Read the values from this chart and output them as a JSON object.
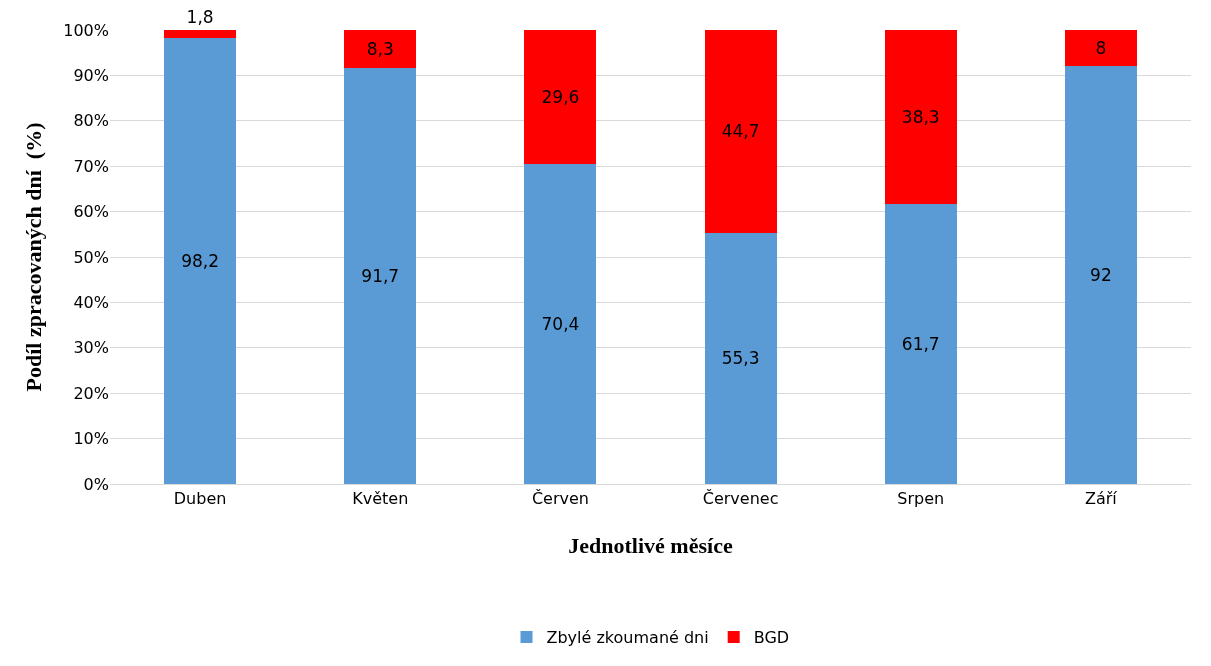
{
  "chart_data": {
    "type": "bar",
    "stacked": true,
    "xlabel": "Jednotlivé měsíce",
    "ylabel": "Podíl zpracovaných dní  (%)",
    "categories": [
      "Duben",
      "Květen",
      "Červen",
      "Červenec",
      "Srpen",
      "Září"
    ],
    "series": [
      {
        "name": "Zbylé zkoumané dni",
        "color": "#5b9bd5",
        "values": [
          98.2,
          91.7,
          70.4,
          55.3,
          61.7,
          92
        ],
        "value_labels": [
          "98,2",
          "91,7",
          "70,4",
          "55,3",
          "61,7",
          "92"
        ]
      },
      {
        "name": "BGD",
        "color": "#ff0000",
        "values": [
          1.8,
          8.3,
          29.6,
          44.7,
          38.3,
          8
        ],
        "value_labels": [
          "1,8",
          "8,3",
          "29,6",
          "44,7",
          "38,3",
          "8"
        ]
      }
    ],
    "ylim": [
      0,
      100
    ],
    "yticks": [
      {
        "value": 0,
        "label": "0%"
      },
      {
        "value": 10,
        "label": "10%"
      },
      {
        "value": 20,
        "label": "20%"
      },
      {
        "value": 30,
        "label": "30%"
      },
      {
        "value": 40,
        "label": "40%"
      },
      {
        "value": 50,
        "label": "50%"
      },
      {
        "value": 60,
        "label": "60%"
      },
      {
        "value": 70,
        "label": "70%"
      },
      {
        "value": 80,
        "label": "80%"
      },
      {
        "value": 90,
        "label": "90%"
      },
      {
        "value": 100,
        "label": "100%"
      }
    ],
    "grid": "y",
    "legend": "bottom"
  }
}
